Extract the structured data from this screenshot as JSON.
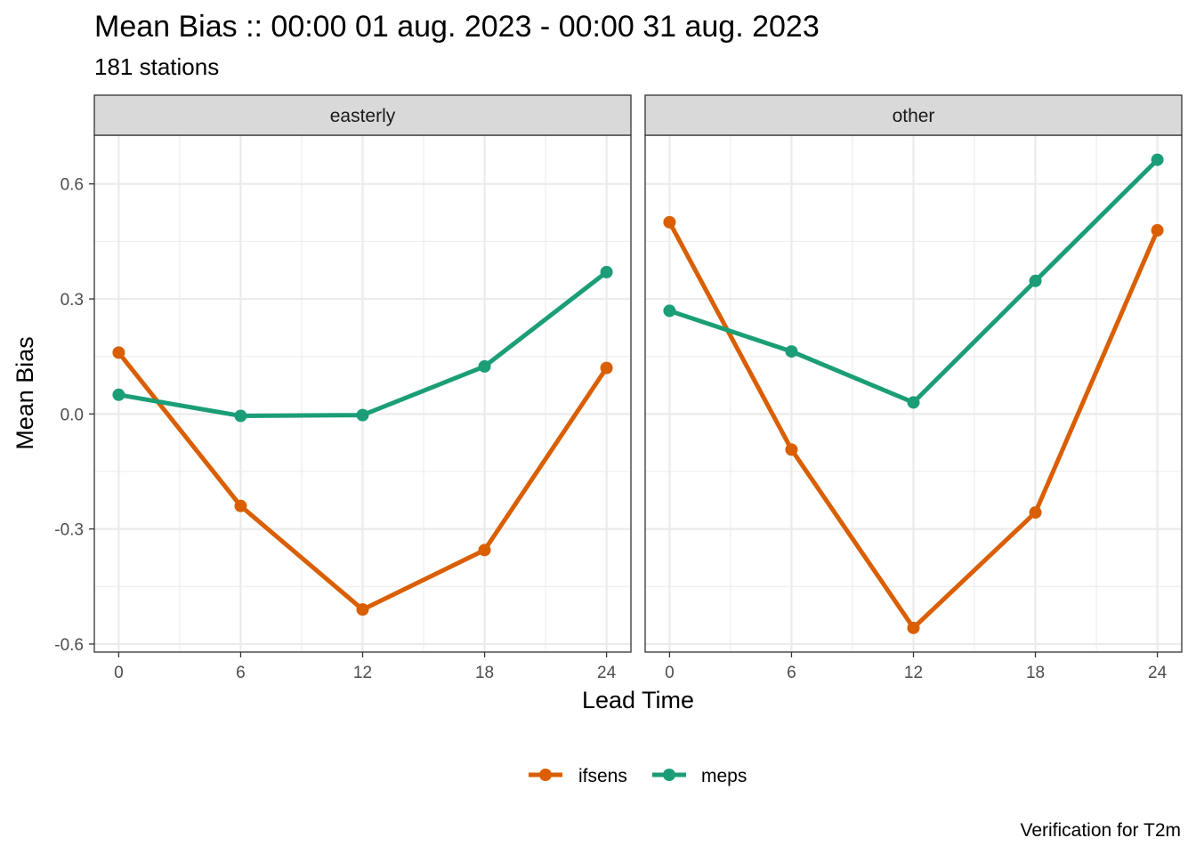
{
  "chart_data": {
    "type": "line",
    "title": "Mean Bias :: 00:00 01 aug. 2023 - 00:00 31 aug. 2023",
    "subtitle": "181 stations",
    "xlabel": "Lead Time",
    "ylabel": "Mean Bias",
    "caption": "Verification for T2m",
    "x": [
      0,
      6,
      12,
      18,
      24
    ],
    "x_ticks": [
      "0",
      "6",
      "12",
      "18",
      "24"
    ],
    "xlim": [
      -1.2,
      25.2
    ],
    "y_ticks": [
      "0.6",
      "0.3",
      "0.0",
      "-0.3",
      "-0.6"
    ],
    "y_tick_values": [
      0.6,
      0.3,
      0.0,
      -0.3,
      -0.6
    ],
    "ylim": [
      -0.621,
      0.727
    ],
    "grid": true,
    "legend_position": "bottom",
    "series_colors": {
      "ifsens": "#d95f02",
      "meps": "#1b9e77"
    },
    "panels": [
      {
        "name": "easterly",
        "series": [
          {
            "name": "ifsens",
            "values": [
              0.16,
              -0.24,
              -0.51,
              -0.355,
              0.12
            ]
          },
          {
            "name": "meps",
            "values": [
              0.05,
              -0.005,
              -0.003,
              0.124,
              0.37
            ]
          }
        ]
      },
      {
        "name": "other",
        "series": [
          {
            "name": "ifsens",
            "values": [
              0.5,
              -0.093,
              -0.558,
              -0.257,
              0.479
            ]
          },
          {
            "name": "meps",
            "values": [
              0.269,
              0.163,
              0.03,
              0.347,
              0.663
            ]
          }
        ]
      }
    ],
    "legend": [
      "ifsens",
      "meps"
    ]
  }
}
